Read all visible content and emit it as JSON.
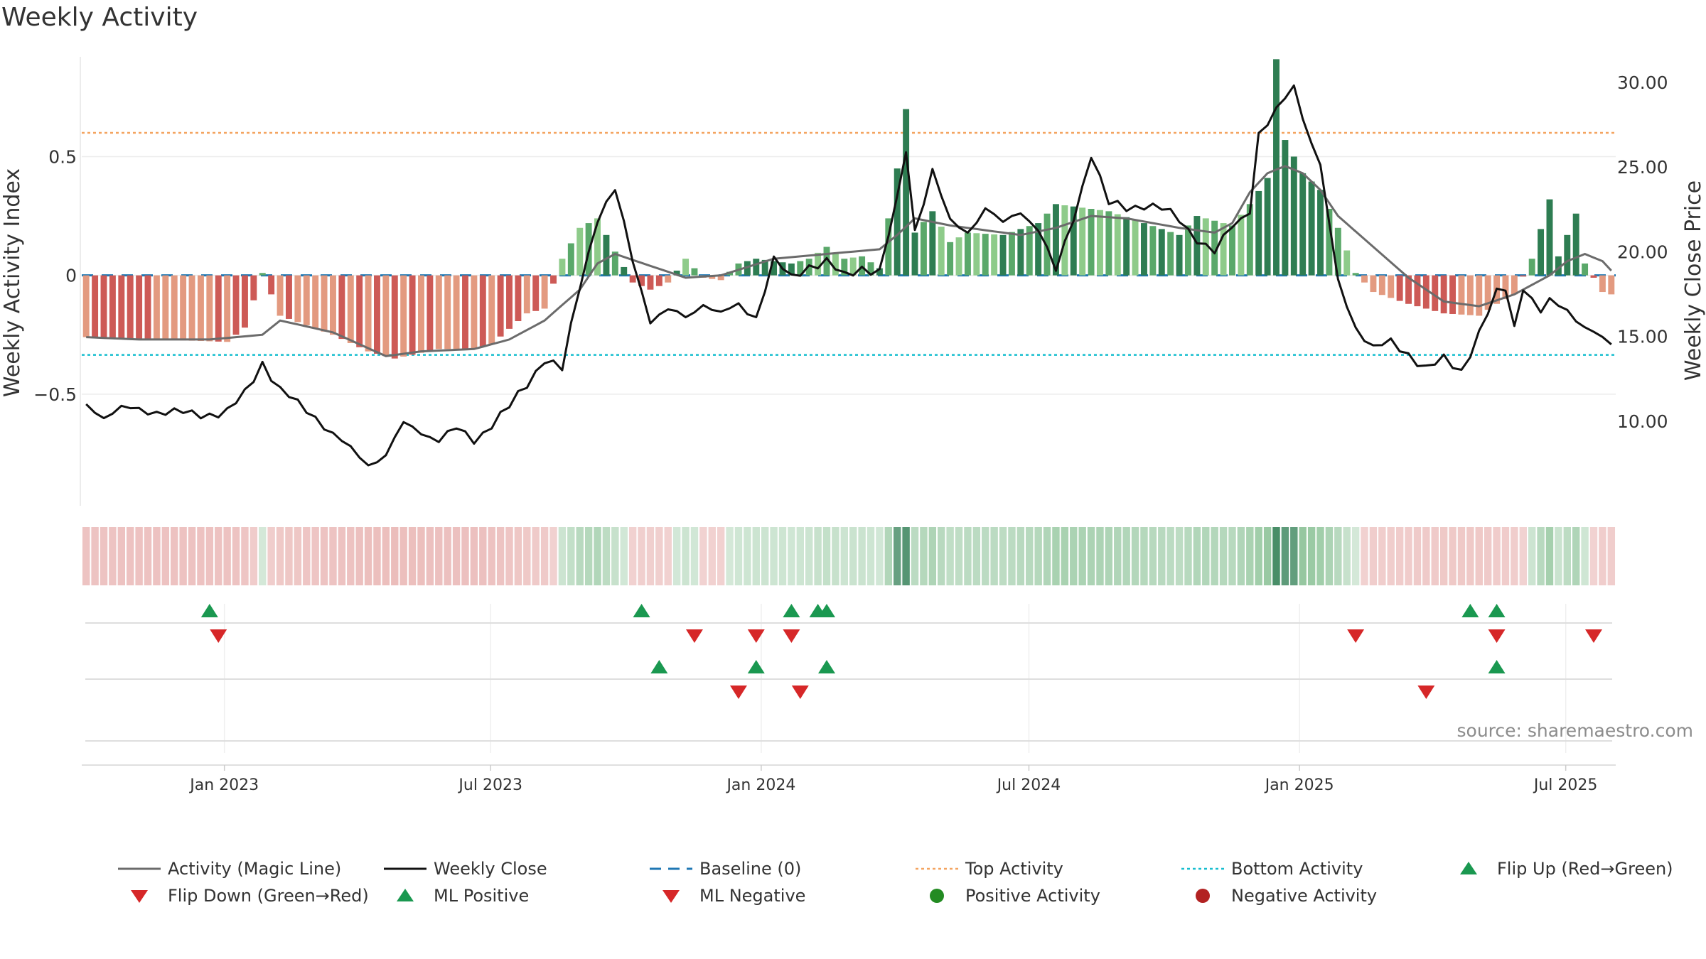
{
  "title": "Weekly Activity",
  "source": "source: sharemaestro.com",
  "colors": {
    "pos_strong": "#2e7d52",
    "pos_mid": "#5aa86a",
    "pos_light": "#8ecb8a",
    "neg_strong": "#cd5a56",
    "neg_light": "#e39a80",
    "magic": "#6b6b6b",
    "close": "#111111",
    "baseline": "#1f77b4",
    "top": "#f4a460",
    "bottom": "#17becf",
    "up": "#1a9850",
    "down": "#d62728",
    "pos_dot": "#238b22",
    "neg_dot": "#b22222"
  },
  "chart_data": {
    "type": "bar",
    "title": "Weekly Activity",
    "ylabel": "Weekly Activity Index",
    "y2label": "Weekly Close Price",
    "ylim": [
      -0.97,
      0.92
    ],
    "y2lim": [
      5.0,
      31.5
    ],
    "yticks": [
      0.5,
      0,
      -0.5
    ],
    "ytick_labels": [
      "0.5",
      "0",
      "−0.5"
    ],
    "y2ticks": [
      30,
      25,
      20,
      15,
      10
    ],
    "y2tick_labels": [
      "30.00",
      "25.00",
      "20.00",
      "15.00",
      "10.00"
    ],
    "x_date_range": [
      "2022-09-26",
      "2025-08-04"
    ],
    "xticks": [
      "2023-01-01",
      "2023-07-01",
      "2024-01-01",
      "2024-07-01",
      "2025-01-01",
      "2025-07-01"
    ],
    "xtick_labels": [
      "Jan 2023",
      "Jul 2023",
      "Jan 2024",
      "Jul 2024",
      "Jan 2025",
      "Jul 2025"
    ],
    "top_activity": 0.6,
    "bottom_activity": -0.335,
    "baseline": 0,
    "activity_keys": [
      [
        0,
        -0.26
      ],
      [
        8,
        -0.27
      ],
      [
        16,
        -0.28
      ],
      [
        18,
        -0.22
      ],
      [
        20,
        0.01
      ],
      [
        22,
        -0.17
      ],
      [
        28,
        -0.25
      ],
      [
        32,
        -0.32
      ],
      [
        35,
        -0.35
      ],
      [
        40,
        -0.31
      ],
      [
        44,
        -0.31
      ],
      [
        46,
        -0.29
      ],
      [
        50,
        -0.16
      ],
      [
        52,
        -0.14
      ],
      [
        54,
        0.07
      ],
      [
        56,
        0.2
      ],
      [
        58,
        0.24
      ],
      [
        60,
        0.1
      ],
      [
        62,
        -0.03
      ],
      [
        64,
        -0.06
      ],
      [
        66,
        -0.03
      ],
      [
        68,
        0.07
      ],
      [
        70,
        -0.01
      ],
      [
        72,
        -0.02
      ],
      [
        74,
        0.05
      ],
      [
        76,
        0.07
      ],
      [
        80,
        0.05
      ],
      [
        82,
        0.07
      ],
      [
        84,
        0.12
      ],
      [
        86,
        0.07
      ],
      [
        88,
        0.08
      ],
      [
        90,
        0.03
      ],
      [
        92,
        0.45
      ],
      [
        93,
        0.7
      ],
      [
        94,
        0.18
      ],
      [
        96,
        0.27
      ],
      [
        98,
        0.14
      ],
      [
        100,
        0.18
      ],
      [
        104,
        0.17
      ],
      [
        108,
        0.22
      ],
      [
        110,
        0.3
      ],
      [
        116,
        0.27
      ],
      [
        120,
        0.22
      ],
      [
        124,
        0.17
      ],
      [
        126,
        0.25
      ],
      [
        130,
        0.21
      ],
      [
        132,
        0.3
      ],
      [
        134,
        0.41
      ],
      [
        135,
        0.91
      ],
      [
        136,
        0.57
      ],
      [
        138,
        0.43
      ],
      [
        140,
        0.36
      ],
      [
        142,
        0.2
      ],
      [
        144,
        0.01
      ],
      [
        146,
        -0.07
      ],
      [
        150,
        -0.12
      ],
      [
        154,
        -0.16
      ],
      [
        158,
        -0.17
      ],
      [
        160,
        -0.12
      ],
      [
        162,
        -0.08
      ],
      [
        164,
        0.07
      ],
      [
        166,
        0.32
      ],
      [
        167,
        0.08
      ],
      [
        169,
        0.26
      ],
      [
        170,
        0.05
      ],
      [
        172,
        -0.07
      ],
      [
        173,
        -0.08
      ]
    ],
    "magic_keys": [
      [
        0,
        -0.26
      ],
      [
        6,
        -0.27
      ],
      [
        14,
        -0.27
      ],
      [
        20,
        -0.25
      ],
      [
        22,
        -0.19
      ],
      [
        28,
        -0.24
      ],
      [
        34,
        -0.34
      ],
      [
        38,
        -0.32
      ],
      [
        44,
        -0.31
      ],
      [
        48,
        -0.27
      ],
      [
        50,
        -0.23
      ],
      [
        52,
        -0.19
      ],
      [
        56,
        -0.06
      ],
      [
        58,
        0.05
      ],
      [
        60,
        0.09
      ],
      [
        64,
        0.04
      ],
      [
        68,
        -0.01
      ],
      [
        72,
        0.0
      ],
      [
        78,
        0.07
      ],
      [
        84,
        0.09
      ],
      [
        90,
        0.11
      ],
      [
        92,
        0.17
      ],
      [
        94,
        0.24
      ],
      [
        98,
        0.21
      ],
      [
        102,
        0.19
      ],
      [
        106,
        0.17
      ],
      [
        110,
        0.2
      ],
      [
        114,
        0.25
      ],
      [
        118,
        0.24
      ],
      [
        124,
        0.2
      ],
      [
        128,
        0.18
      ],
      [
        130,
        0.22
      ],
      [
        132,
        0.35
      ],
      [
        134,
        0.43
      ],
      [
        136,
        0.46
      ],
      [
        138,
        0.43
      ],
      [
        140,
        0.36
      ],
      [
        142,
        0.25
      ],
      [
        146,
        0.12
      ],
      [
        150,
        -0.01
      ],
      [
        154,
        -0.11
      ],
      [
        158,
        -0.13
      ],
      [
        162,
        -0.08
      ],
      [
        166,
        0.0
      ],
      [
        168,
        0.06
      ],
      [
        170,
        0.09
      ],
      [
        172,
        0.06
      ],
      [
        173,
        0.02
      ]
    ],
    "close_keys": [
      [
        0,
        11.0
      ],
      [
        2,
        10.3
      ],
      [
        4,
        10.7
      ],
      [
        8,
        10.6
      ],
      [
        12,
        10.4
      ],
      [
        16,
        10.5
      ],
      [
        18,
        11.6
      ],
      [
        20,
        13.5
      ],
      [
        22,
        11.8
      ],
      [
        24,
        11.0
      ],
      [
        26,
        10.3
      ],
      [
        28,
        9.2
      ],
      [
        30,
        8.3
      ],
      [
        32,
        7.5
      ],
      [
        34,
        8.0
      ],
      [
        36,
        9.8
      ],
      [
        38,
        9.4
      ],
      [
        40,
        8.9
      ],
      [
        42,
        9.5
      ],
      [
        44,
        8.9
      ],
      [
        46,
        9.8
      ],
      [
        48,
        10.8
      ],
      [
        50,
        12.2
      ],
      [
        52,
        13.7
      ],
      [
        54,
        13.0
      ],
      [
        56,
        18.0
      ],
      [
        58,
        22.0
      ],
      [
        60,
        23.6
      ],
      [
        62,
        19.5
      ],
      [
        64,
        16.0
      ],
      [
        66,
        16.5
      ],
      [
        68,
        16.1
      ],
      [
        70,
        17.0
      ],
      [
        72,
        16.3
      ],
      [
        74,
        16.8
      ],
      [
        76,
        16.2
      ],
      [
        78,
        19.5
      ],
      [
        80,
        18.4
      ],
      [
        82,
        19.2
      ],
      [
        84,
        19.4
      ],
      [
        86,
        18.5
      ],
      [
        88,
        19.1
      ],
      [
        90,
        18.8
      ],
      [
        92,
        23.0
      ],
      [
        93,
        26.0
      ],
      [
        94,
        21.3
      ],
      [
        96,
        24.8
      ],
      [
        98,
        21.7
      ],
      [
        100,
        21.2
      ],
      [
        102,
        22.6
      ],
      [
        104,
        21.6
      ],
      [
        106,
        22.4
      ],
      [
        108,
        21.4
      ],
      [
        110,
        18.8
      ],
      [
        112,
        22.0
      ],
      [
        114,
        25.8
      ],
      [
        116,
        22.8
      ],
      [
        118,
        22.6
      ],
      [
        120,
        22.8
      ],
      [
        122,
        22.5
      ],
      [
        124,
        21.9
      ],
      [
        126,
        20.8
      ],
      [
        128,
        19.9
      ],
      [
        130,
        21.5
      ],
      [
        132,
        22.5
      ],
      [
        133,
        27.0
      ],
      [
        134,
        27.4
      ],
      [
        135,
        28.3
      ],
      [
        136,
        29.0
      ],
      [
        137,
        29.9
      ],
      [
        138,
        28.0
      ],
      [
        140,
        25.0
      ],
      [
        142,
        18.2
      ],
      [
        144,
        15.6
      ],
      [
        146,
        14.3
      ],
      [
        148,
        14.6
      ],
      [
        150,
        14.0
      ],
      [
        152,
        13.1
      ],
      [
        154,
        13.6
      ],
      [
        156,
        13.0
      ],
      [
        158,
        15.2
      ],
      [
        160,
        17.5
      ],
      [
        161,
        17.8
      ],
      [
        162,
        15.6
      ],
      [
        163,
        18.0
      ],
      [
        165,
        16.4
      ],
      [
        166,
        17.0
      ],
      [
        168,
        16.6
      ],
      [
        170,
        15.6
      ],
      [
        172,
        14.8
      ],
      [
        173,
        14.4
      ]
    ],
    "flip_up_weeks": [
      14,
      63,
      80,
      83,
      84,
      157,
      160
    ],
    "flip_down_weeks": [
      15,
      69,
      76,
      80,
      144,
      160,
      171
    ],
    "ml_positive_weeks": [
      65,
      76,
      84,
      160
    ],
    "ml_negative_weeks": [
      74,
      81,
      152
    ],
    "n_weeks": 174,
    "activity_band_unit": "weeks, 2022-09-26 → 2025-08-04"
  },
  "legend": [
    {
      "label": "Activity (Magic Line)",
      "icon": "line-grey"
    },
    {
      "label": "Weekly Close",
      "icon": "line-black"
    },
    {
      "label": "Baseline (0)",
      "icon": "dash-blue"
    },
    {
      "label": "Top Activity",
      "icon": "dot-orange"
    },
    {
      "label": "Bottom Activity",
      "icon": "dot-cyan"
    },
    {
      "label": "Flip Up (Red→Green)",
      "icon": "triangle-up-green"
    },
    {
      "label": "Flip Down (Green→Red)",
      "icon": "triangle-down-red"
    },
    {
      "label": "ML Positive",
      "icon": "triangle-up-green"
    },
    {
      "label": "ML Negative",
      "icon": "triangle-down-red"
    },
    {
      "label": "Positive Activity",
      "icon": "circle-green"
    },
    {
      "label": "Negative Activity",
      "icon": "circle-red"
    }
  ]
}
